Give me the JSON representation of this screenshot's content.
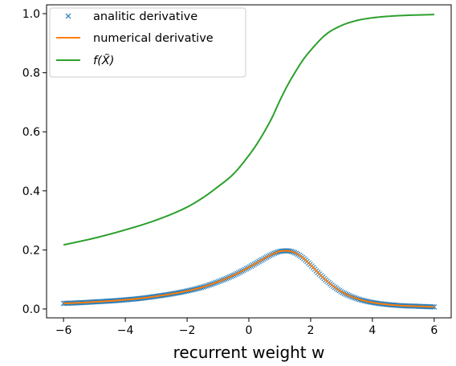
{
  "chart_data": {
    "type": "line",
    "title": "",
    "xlabel": "recurrent weight w",
    "ylabel": "",
    "xlim": [
      -6.55,
      6.55
    ],
    "ylim": [
      -0.03,
      1.03
    ],
    "xticks": [
      -6,
      -4,
      -2,
      0,
      2,
      4,
      6
    ],
    "xtick_labels": [
      "−6",
      "−4",
      "−2",
      "0",
      "2",
      "4",
      "6"
    ],
    "yticks": [
      0.0,
      0.2,
      0.4,
      0.6,
      0.8,
      1.0
    ],
    "ytick_labels": [
      "0.0",
      "0.2",
      "0.4",
      "0.6",
      "0.8",
      "1.0"
    ],
    "grid": false,
    "legend_position": "top-left",
    "series": [
      {
        "name": "analitic derivative",
        "style": "x-markers",
        "color": "#1f77b4",
        "x": [
          -6,
          -5.5,
          -5,
          -4.5,
          -4,
          -3.5,
          -3,
          -2.5,
          -2,
          -1.5,
          -1,
          -0.5,
          0,
          0.25,
          0.5,
          0.75,
          1,
          1.25,
          1.5,
          1.75,
          2,
          2.25,
          2.5,
          3,
          3.5,
          4,
          4.5,
          5,
          5.5,
          6
        ],
        "values": [
          0.019,
          0.021,
          0.024,
          0.027,
          0.031,
          0.036,
          0.043,
          0.051,
          0.061,
          0.074,
          0.092,
          0.114,
          0.141,
          0.156,
          0.171,
          0.185,
          0.195,
          0.197,
          0.19,
          0.173,
          0.149,
          0.122,
          0.097,
          0.058,
          0.035,
          0.022,
          0.015,
          0.011,
          0.009,
          0.007
        ]
      },
      {
        "name": "numerical derivative",
        "style": "line",
        "color": "#ff7f0e",
        "x": [
          -6,
          -5.5,
          -5,
          -4.5,
          -4,
          -3.5,
          -3,
          -2.5,
          -2,
          -1.5,
          -1,
          -0.5,
          0,
          0.25,
          0.5,
          0.75,
          1,
          1.25,
          1.5,
          1.75,
          2,
          2.25,
          2.5,
          3,
          3.5,
          4,
          4.5,
          5,
          5.5,
          6
        ],
        "values": [
          0.019,
          0.021,
          0.024,
          0.027,
          0.031,
          0.036,
          0.043,
          0.051,
          0.061,
          0.074,
          0.092,
          0.114,
          0.141,
          0.156,
          0.171,
          0.185,
          0.195,
          0.197,
          0.19,
          0.173,
          0.149,
          0.122,
          0.097,
          0.058,
          0.035,
          0.022,
          0.015,
          0.011,
          0.009,
          0.007
        ]
      },
      {
        "name": "f(X̃)",
        "style": "line",
        "color": "#2ca02c",
        "x": [
          -6,
          -5,
          -4,
          -3,
          -2,
          -1.5,
          -1,
          -0.5,
          0,
          0.25,
          0.5,
          0.75,
          1,
          1.25,
          1.5,
          1.75,
          2,
          2.5,
          3,
          3.5,
          4,
          4.5,
          5,
          6
        ],
        "values": [
          0.217,
          0.24,
          0.268,
          0.301,
          0.345,
          0.376,
          0.414,
          0.457,
          0.52,
          0.557,
          0.6,
          0.648,
          0.705,
          0.757,
          0.802,
          0.843,
          0.876,
          0.93,
          0.96,
          0.977,
          0.986,
          0.991,
          0.994,
          0.997
        ]
      }
    ]
  }
}
